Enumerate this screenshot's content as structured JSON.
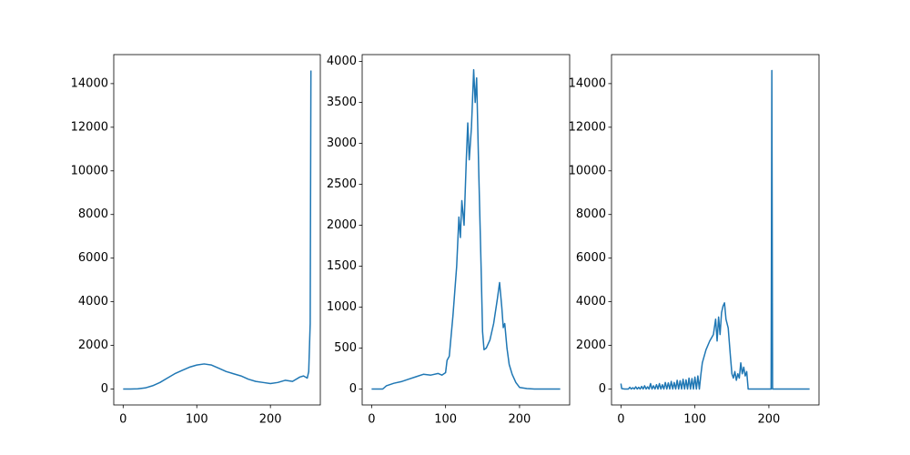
{
  "chart_data": [
    {
      "type": "line",
      "x": [
        0,
        10,
        20,
        30,
        40,
        50,
        60,
        70,
        80,
        90,
        100,
        110,
        120,
        130,
        140,
        150,
        160,
        170,
        180,
        190,
        200,
        210,
        220,
        230,
        240,
        245,
        250,
        252,
        254,
        255
      ],
      "series": [
        {
          "color": "#1f77b4",
          "values": [
            0,
            0,
            10,
            50,
            150,
            300,
            500,
            700,
            850,
            1000,
            1100,
            1150,
            1100,
            950,
            800,
            700,
            600,
            450,
            350,
            300,
            250,
            300,
            400,
            350,
            550,
            600,
            500,
            800,
            3000,
            14600
          ]
        }
      ],
      "xlim": [
        -12.75,
        267.75
      ],
      "ylim": [
        -730,
        15330
      ],
      "xticks": [
        0,
        100,
        200
      ],
      "yticks": [
        0,
        2000,
        4000,
        6000,
        8000,
        10000,
        12000,
        14000
      ]
    },
    {
      "type": "line",
      "x": [
        0,
        15,
        20,
        30,
        40,
        50,
        60,
        70,
        80,
        90,
        95,
        100,
        102,
        105,
        110,
        115,
        118,
        120,
        122,
        125,
        128,
        130,
        132,
        135,
        138,
        140,
        142,
        145,
        148,
        150,
        152,
        155,
        160,
        165,
        170,
        173,
        176,
        178,
        180,
        183,
        186,
        190,
        195,
        200,
        210,
        220,
        255
      ],
      "series": [
        {
          "color": "#1f77b4",
          "values": [
            0,
            0,
            40,
            70,
            90,
            120,
            150,
            180,
            170,
            190,
            170,
            200,
            350,
            400,
            900,
            1500,
            2100,
            1850,
            2300,
            2000,
            2800,
            3250,
            2800,
            3200,
            3900,
            3500,
            3800,
            2600,
            1500,
            700,
            480,
            500,
            600,
            800,
            1100,
            1300,
            1000,
            750,
            800,
            500,
            300,
            180,
            80,
            20,
            5,
            0,
            0
          ]
        }
      ],
      "xlim": [
        -12.75,
        267.75
      ],
      "ylim": [
        -194.5,
        4084.5
      ],
      "xticks": [
        0,
        100,
        200
      ],
      "yticks": [
        0,
        500,
        1000,
        1500,
        2000,
        2500,
        3000,
        3500,
        4000
      ]
    },
    {
      "type": "line",
      "x": [
        0,
        1,
        5,
        10,
        12,
        14,
        16,
        18,
        20,
        22,
        24,
        26,
        28,
        30,
        32,
        34,
        36,
        38,
        40,
        42,
        44,
        46,
        48,
        50,
        52,
        54,
        56,
        58,
        60,
        62,
        64,
        66,
        68,
        70,
        72,
        74,
        76,
        78,
        80,
        82,
        84,
        86,
        88,
        90,
        92,
        94,
        96,
        98,
        100,
        102,
        104,
        106,
        108,
        110,
        115,
        120,
        125,
        128,
        130,
        132,
        134,
        136,
        138,
        140,
        142,
        145,
        148,
        150,
        152,
        154,
        156,
        158,
        160,
        162,
        164,
        166,
        168,
        170,
        172,
        200,
        203,
        204,
        205,
        255
      ],
      "series": [
        {
          "color": "#1f77b4",
          "values": [
            250,
            20,
            0,
            0,
            80,
            0,
            60,
            0,
            100,
            0,
            80,
            0,
            120,
            0,
            150,
            0,
            100,
            0,
            250,
            0,
            150,
            0,
            200,
            0,
            250,
            0,
            200,
            0,
            300,
            0,
            280,
            0,
            350,
            0,
            300,
            0,
            400,
            0,
            380,
            0,
            450,
            0,
            420,
            0,
            500,
            0,
            480,
            0,
            550,
            0,
            600,
            0,
            650,
            1200,
            1800,
            2200,
            2500,
            3200,
            2200,
            3300,
            2500,
            3500,
            3800,
            3950,
            3200,
            2800,
            1500,
            700,
            500,
            800,
            400,
            700,
            500,
            1200,
            700,
            1000,
            600,
            800,
            0,
            0,
            0,
            14600,
            0,
            0
          ]
        }
      ],
      "xlim": [
        -12.75,
        267.75
      ],
      "ylim": [
        -730,
        15330
      ],
      "xticks": [
        0,
        100,
        200
      ],
      "yticks": [
        0,
        2000,
        4000,
        6000,
        8000,
        10000,
        12000,
        14000
      ]
    }
  ]
}
